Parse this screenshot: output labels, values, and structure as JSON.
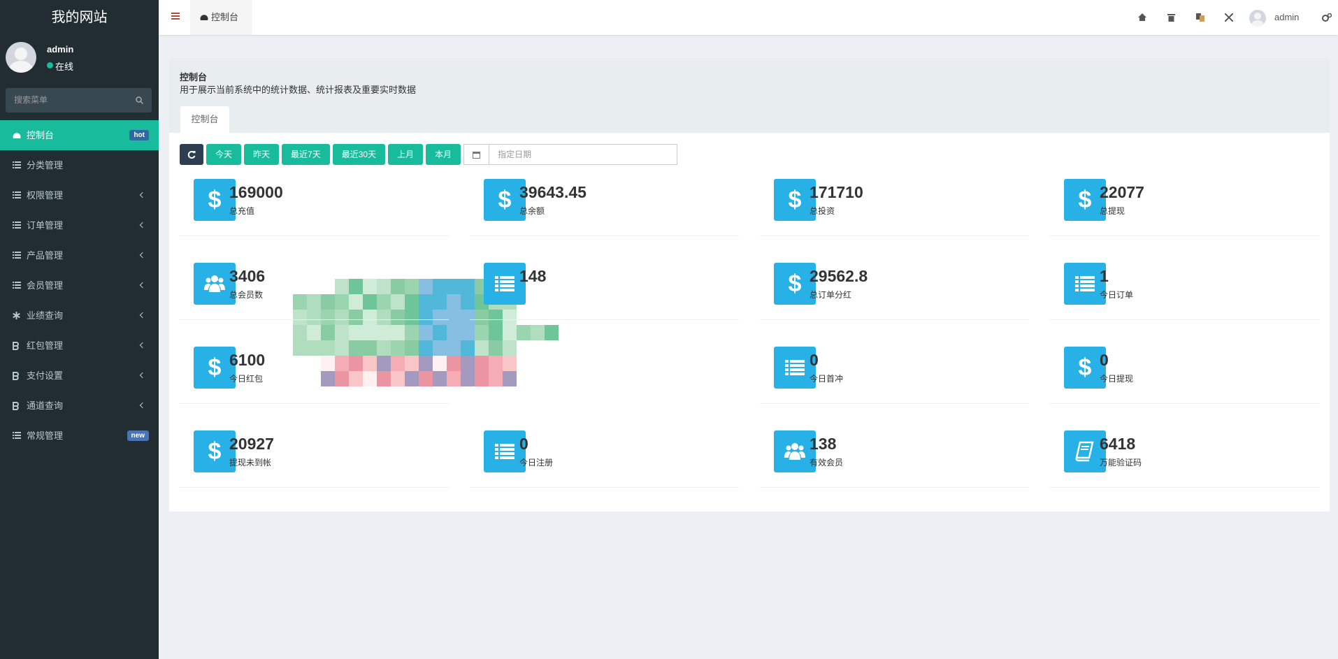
{
  "sidebar": {
    "title": "我的网站",
    "user": {
      "name": "admin",
      "status": "在线"
    },
    "search_placeholder": "搜索菜单",
    "menu": [
      {
        "label": "控制台",
        "icon": "dashboard",
        "badge": "hot",
        "active": true
      },
      {
        "label": "分类管理",
        "icon": "list"
      },
      {
        "label": "权限管理",
        "icon": "list",
        "submenu": true
      },
      {
        "label": "订单管理",
        "icon": "list",
        "submenu": true
      },
      {
        "label": "产品管理",
        "icon": "list",
        "submenu": true
      },
      {
        "label": "会员管理",
        "icon": "list",
        "submenu": true
      },
      {
        "label": "业绩查询",
        "icon": "asterisk",
        "submenu": true
      },
      {
        "label": "红包管理",
        "icon": "bitcoin",
        "submenu": true
      },
      {
        "label": "支付设置",
        "icon": "bitcoin",
        "submenu": true
      },
      {
        "label": "通道查询",
        "icon": "bitcoin",
        "submenu": true
      },
      {
        "label": "常规管理",
        "icon": "list",
        "badge": "new"
      }
    ]
  },
  "header": {
    "tab": "控制台",
    "user": "admin"
  },
  "panel": {
    "title": "控制台",
    "description": "用于展示当前系统中的统计数据、统计报表及重要实时数据",
    "tab": "控制台",
    "buttons": [
      "今天",
      "昨天",
      "最近7天",
      "最近30天",
      "上月",
      "本月"
    ],
    "date_placeholder": "指定日期"
  },
  "stats": [
    {
      "value": 169000,
      "label": "总充值",
      "icon": "dollar"
    },
    {
      "value": 39643.45,
      "label": "总余额",
      "icon": "dollar"
    },
    {
      "value": 171710,
      "label": "总投资",
      "icon": "dollar"
    },
    {
      "value": 22077,
      "label": "总提现",
      "icon": "dollar"
    },
    {
      "value": 3406,
      "label": "总会员数",
      "icon": "users"
    },
    {
      "value": 148,
      "icon": "list"
    },
    {
      "value": 29562.8,
      "label": "总订单分红",
      "icon": "dollar"
    },
    {
      "value": 1,
      "label": "今日订单",
      "icon": "list"
    },
    {
      "value": 6100,
      "label": "今日红包",
      "icon": "dollar"
    },
    null,
    {
      "value": 0,
      "label": "今日首冲",
      "icon": "list"
    },
    {
      "value": 0,
      "label": "今日提现",
      "icon": "dollar"
    },
    {
      "value": 20927,
      "label": "提现未到帐",
      "icon": "dollar"
    },
    {
      "value": 0,
      "label": "今日注册",
      "icon": "list"
    },
    {
      "value": 138,
      "label": "有效会员",
      "icon": "users"
    },
    {
      "value": 6418,
      "label": "万能验证码",
      "icon": "book"
    }
  ]
}
